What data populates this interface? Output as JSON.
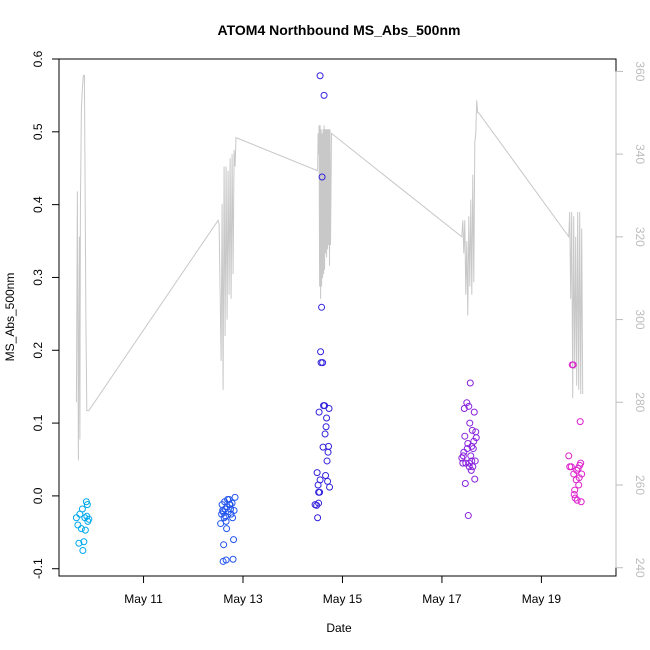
{
  "chart_data": {
    "type": "scatter",
    "title": "ATOM4 Northbound MS_Abs_500nm",
    "xlabel": "Date",
    "ylabel": "MS_Abs_500nm",
    "xlim": [
      9.3,
      20.5
    ],
    "ylim": [
      -0.11,
      0.6
    ],
    "y2lim": [
      238,
      363
    ],
    "x_ticks": [
      11,
      13,
      15,
      17,
      19
    ],
    "x_tick_labels": [
      "May 11",
      "May 13",
      "May 15",
      "May 17",
      "May 19"
    ],
    "y_ticks": [
      -0.1,
      0.0,
      0.1,
      0.2,
      0.3,
      0.4,
      0.5,
      0.6
    ],
    "y_tick_labels": [
      "-0.1",
      "0.0",
      "0.1",
      "0.2",
      "0.3",
      "0.4",
      "0.5",
      "0.6"
    ],
    "y2_ticks": [
      240,
      260,
      280,
      300,
      320,
      340,
      360
    ],
    "y2_tick_labels": [
      "240",
      "260",
      "280",
      "300",
      "320",
      "340",
      "360"
    ],
    "grid": false,
    "series": [
      {
        "marker": "open-circle",
        "color": "#00aaee",
        "points": [
          [
            9.65,
            -0.03
          ],
          [
            9.68,
            -0.04
          ],
          [
            9.7,
            -0.065
          ],
          [
            9.72,
            -0.025
          ],
          [
            9.75,
            -0.045
          ],
          [
            9.77,
            -0.018
          ],
          [
            9.78,
            -0.075
          ],
          [
            9.8,
            -0.063
          ],
          [
            9.82,
            -0.03
          ],
          [
            9.83,
            -0.047
          ],
          [
            9.85,
            -0.008
          ],
          [
            9.86,
            -0.028
          ],
          [
            9.87,
            -0.012
          ],
          [
            9.88,
            -0.035
          ],
          [
            9.9,
            -0.032
          ]
        ]
      },
      {
        "marker": "open-circle",
        "color": "#2255ee",
        "points": [
          [
            12.55,
            -0.038
          ],
          [
            12.57,
            -0.025
          ],
          [
            12.58,
            -0.012
          ],
          [
            12.59,
            -0.02
          ],
          [
            12.6,
            -0.09
          ],
          [
            12.61,
            -0.067
          ],
          [
            12.62,
            -0.03
          ],
          [
            12.63,
            -0.008
          ],
          [
            12.64,
            -0.018
          ],
          [
            12.65,
            -0.028
          ],
          [
            12.66,
            -0.088
          ],
          [
            12.67,
            -0.045
          ],
          [
            12.68,
            -0.015
          ],
          [
            12.7,
            -0.022
          ],
          [
            12.72,
            -0.005
          ],
          [
            12.74,
            -0.012
          ],
          [
            12.75,
            -0.018
          ],
          [
            12.76,
            -0.025
          ],
          [
            12.78,
            -0.01
          ],
          [
            12.79,
            -0.03
          ],
          [
            12.8,
            -0.087
          ],
          [
            12.81,
            -0.06
          ],
          [
            12.82,
            -0.02
          ],
          [
            12.84,
            -0.002
          ],
          [
            12.66,
            -0.035
          ],
          [
            12.6,
            -0.022
          ],
          [
            12.73,
            -0.012
          ],
          [
            12.69,
            -0.005
          ]
        ]
      },
      {
        "marker": "open-circle",
        "color": "#3322dd",
        "points": [
          [
            14.45,
            -0.012
          ],
          [
            14.48,
            -0.013
          ],
          [
            14.49,
            0.032
          ],
          [
            14.5,
            -0.03
          ],
          [
            14.51,
            0.015
          ],
          [
            14.52,
            0.005
          ],
          [
            14.53,
            0.115
          ],
          [
            14.54,
            0.005
          ],
          [
            14.55,
            0.577
          ],
          [
            14.56,
            0.198
          ],
          [
            14.57,
            0.183
          ],
          [
            14.58,
            0.259
          ],
          [
            14.59,
            0.438
          ],
          [
            14.6,
            0.183
          ],
          [
            14.61,
            0.067
          ],
          [
            14.62,
            0.124
          ],
          [
            14.63,
            0.55
          ],
          [
            14.64,
            0.124
          ],
          [
            14.65,
            0.085
          ],
          [
            14.66,
            0.028
          ],
          [
            14.67,
            0.095
          ],
          [
            14.68,
            0.107
          ],
          [
            14.69,
            0.048
          ],
          [
            14.7,
            0.02
          ],
          [
            14.71,
            0.06
          ],
          [
            14.72,
            0.068
          ],
          [
            14.73,
            0.12
          ],
          [
            14.74,
            0.012
          ],
          [
            14.52,
            -0.01
          ],
          [
            14.55,
            0.022
          ]
        ]
      },
      {
        "marker": "open-circle",
        "color": "#8822dd",
        "points": [
          [
            17.4,
            0.052
          ],
          [
            17.42,
            0.045
          ],
          [
            17.44,
            0.06
          ],
          [
            17.45,
            0.12
          ],
          [
            17.47,
            0.017
          ],
          [
            17.48,
            0.045
          ],
          [
            17.5,
            0.128
          ],
          [
            17.51,
            0.065
          ],
          [
            17.52,
            0.072
          ],
          [
            17.53,
            -0.027
          ],
          [
            17.54,
            0.123
          ],
          [
            17.55,
            0.04
          ],
          [
            17.56,
            0.1
          ],
          [
            17.57,
            0.155
          ],
          [
            17.58,
            0.055
          ],
          [
            17.59,
            0.035
          ],
          [
            17.6,
            0.048
          ],
          [
            17.61,
            0.09
          ],
          [
            17.62,
            0.04
          ],
          [
            17.63,
            0.065
          ],
          [
            17.64,
            0.075
          ],
          [
            17.65,
            0.115
          ],
          [
            17.66,
            0.023
          ],
          [
            17.67,
            0.048
          ],
          [
            17.68,
            0.088
          ],
          [
            17.69,
            0.08
          ],
          [
            17.46,
            0.082
          ],
          [
            17.43,
            0.055
          ],
          [
            17.55,
            0.045
          ],
          [
            17.6,
            0.068
          ]
        ]
      },
      {
        "marker": "open-circle",
        "color": "#dd22cc",
        "points": [
          [
            19.55,
            0.055
          ],
          [
            19.57,
            0.04
          ],
          [
            19.6,
            0.04
          ],
          [
            19.62,
            0.18
          ],
          [
            19.64,
            0.18
          ],
          [
            19.65,
            0.03
          ],
          [
            19.67,
            0.008
          ],
          [
            19.68,
            -0.003
          ],
          [
            19.7,
            0.022
          ],
          [
            19.72,
            -0.006
          ],
          [
            19.74,
            0.038
          ],
          [
            19.75,
            0.015
          ],
          [
            19.76,
            0.025
          ],
          [
            19.78,
            0.102
          ],
          [
            19.79,
            0.045
          ],
          [
            19.8,
            -0.008
          ],
          [
            19.81,
            0.03
          ],
          [
            19.66,
            0.002
          ],
          [
            19.71,
            0.035
          ],
          [
            19.77,
            0.042
          ]
        ]
      },
      {
        "type": "line",
        "axis": "right",
        "color": "#c8c8c8",
        "x": [
          9.65,
          9.67,
          9.69,
          9.71,
          9.72,
          9.73,
          9.75,
          9.77,
          9.79,
          9.81,
          9.82,
          9.84,
          9.86,
          9.88,
          9.9,
          12.5,
          12.52,
          12.54,
          12.56,
          12.58,
          12.6,
          12.62,
          12.64,
          12.66,
          12.68,
          12.7,
          12.72,
          12.74,
          12.76,
          12.78,
          12.8,
          12.82,
          12.84,
          12.86,
          14.5,
          14.51,
          14.52,
          14.53,
          14.54,
          14.55,
          14.56,
          14.57,
          14.58,
          14.59,
          14.6,
          14.61,
          14.62,
          14.63,
          14.64,
          14.65,
          14.66,
          14.67,
          14.68,
          14.69,
          14.7,
          14.71,
          14.72,
          14.73,
          14.74,
          14.75,
          14.76,
          14.78,
          17.4,
          17.42,
          17.44,
          17.46,
          17.48,
          17.5,
          17.52,
          17.54,
          17.56,
          17.58,
          17.6,
          17.62,
          17.64,
          17.66,
          17.68,
          17.7,
          17.72,
          17.74,
          19.55,
          19.57,
          19.59,
          19.61,
          19.63,
          19.65,
          19.67,
          19.69,
          19.71,
          19.73,
          19.75,
          19.77,
          19.79,
          19.81,
          19.83
        ],
        "y": [
          280,
          331,
          266,
          320,
          271,
          327,
          351,
          356,
          359,
          359,
          340,
          300,
          278,
          278,
          278,
          324,
          323,
          307,
          290,
          328,
          283,
          337,
          296,
          337,
          300,
          336,
          306,
          339,
          305,
          340,
          311,
          341,
          337,
          344,
          336,
          345,
          340,
          347,
          308,
          347,
          305,
          346,
          308,
          345,
          310,
          346,
          311,
          347,
          312,
          346,
          316,
          346,
          315,
          346,
          317,
          346,
          318,
          346,
          313,
          346,
          318,
          345,
          320,
          324,
          316,
          324,
          306,
          319,
          301,
          325,
          308,
          329,
          306,
          335,
          309,
          343,
          345,
          353,
          350,
          350,
          320,
          326,
          305,
          326,
          281,
          325,
          288,
          320,
          284,
          326,
          283,
          326,
          282,
          322,
          282
        ]
      }
    ]
  }
}
